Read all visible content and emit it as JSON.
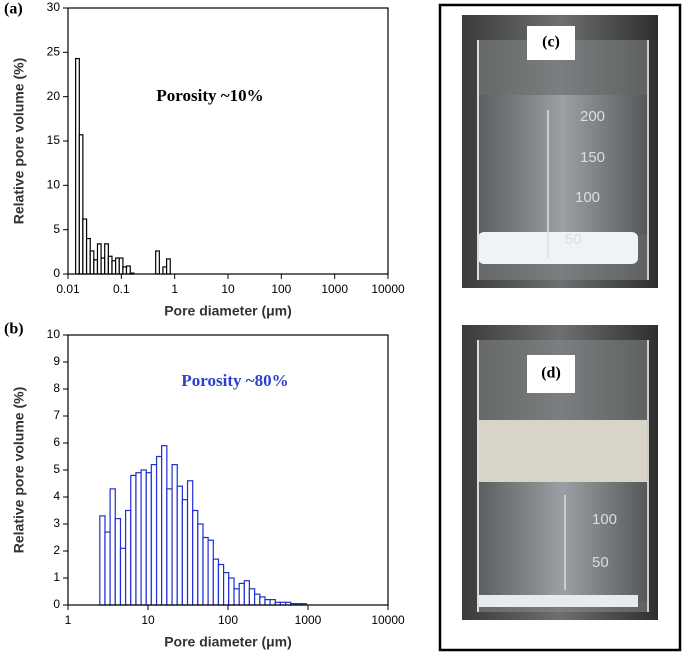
{
  "chart_data": [
    {
      "type": "histogram",
      "panel_label": "(a)",
      "annotation": "Porosity ~10%",
      "annotation_color": "#000000",
      "x_label": "Pore diameter (μm)",
      "y_label": "Relative pore volume (%)",
      "xscale": "log",
      "xlim": [
        0.01,
        10000
      ],
      "xticks": [
        0.01,
        0.1,
        1,
        10,
        100,
        1000,
        10000
      ],
      "ylim": [
        0,
        30
      ],
      "yticks": [
        0,
        5,
        10,
        15,
        20,
        25,
        30
      ],
      "color": "#000000",
      "bins": [
        0.0139,
        0.0163,
        0.019,
        0.0223,
        0.0261,
        0.0305,
        0.0357,
        0.0417,
        0.0488,
        0.0571,
        0.0668,
        0.0782,
        0.0915,
        0.107,
        0.125,
        0.147,
        0.172,
        0.201,
        0.235,
        0.275,
        0.322,
        0.377,
        0.441,
        0.516,
        0.603,
        0.706,
        0.826,
        0.966,
        1.13
      ],
      "values": [
        24.3,
        15.7,
        6.2,
        4.0,
        2.6,
        1.6,
        3.4,
        1.8,
        3.4,
        2.0,
        1.5,
        1.8,
        1.8,
        0.8,
        0.9,
        0.1,
        0,
        0,
        0,
        0,
        0,
        0,
        2.6,
        0,
        0.8,
        1.7,
        0,
        0
      ]
    },
    {
      "type": "histogram",
      "panel_label": "(b)",
      "annotation": "Porosity ~80%",
      "annotation_color": "#2b3fc8",
      "x_label": "Pore diameter (μm)",
      "y_label": "Relative pore volume (%)",
      "xscale": "log",
      "xlim": [
        1,
        10000
      ],
      "xticks": [
        1,
        10,
        100,
        1000,
        10000
      ],
      "ylim": [
        0,
        10
      ],
      "yticks": [
        0,
        1,
        2,
        3,
        4,
        5,
        6,
        7,
        8,
        9,
        10
      ],
      "color": "#1f2fd0",
      "bins": [
        2.5,
        2.9,
        3.36,
        3.9,
        4.53,
        5.25,
        6.09,
        7.07,
        8.2,
        9.51,
        11.0,
        12.8,
        14.8,
        17.2,
        20.0,
        23.2,
        26.9,
        31.2,
        36.2,
        41.9,
        48.7,
        56.4,
        65.5,
        76.0,
        88.1,
        102,
        119,
        138,
        160,
        185,
        215,
        250,
        290,
        336,
        390,
        452,
        525,
        609,
        706,
        819,
        950,
        1100
      ],
      "values": [
        3.3,
        2.7,
        4.3,
        3.2,
        2.1,
        3.5,
        4.8,
        4.9,
        5.0,
        4.9,
        5.2,
        5.5,
        5.9,
        4.3,
        5.2,
        4.4,
        3.9,
        4.6,
        3.5,
        3.0,
        2.5,
        2.4,
        1.7,
        1.5,
        1.2,
        1.0,
        0.6,
        0.8,
        0.9,
        0.6,
        0.4,
        0.3,
        0.2,
        0.2,
        0.1,
        0.1,
        0.1,
        0.05,
        0.05,
        0.05,
        0
      ]
    }
  ],
  "photos": [
    {
      "label": "(c)",
      "markings": [
        "200",
        "150",
        "100",
        "50"
      ]
    },
    {
      "label": "(d)",
      "markings": [
        "100",
        "50"
      ]
    }
  ]
}
